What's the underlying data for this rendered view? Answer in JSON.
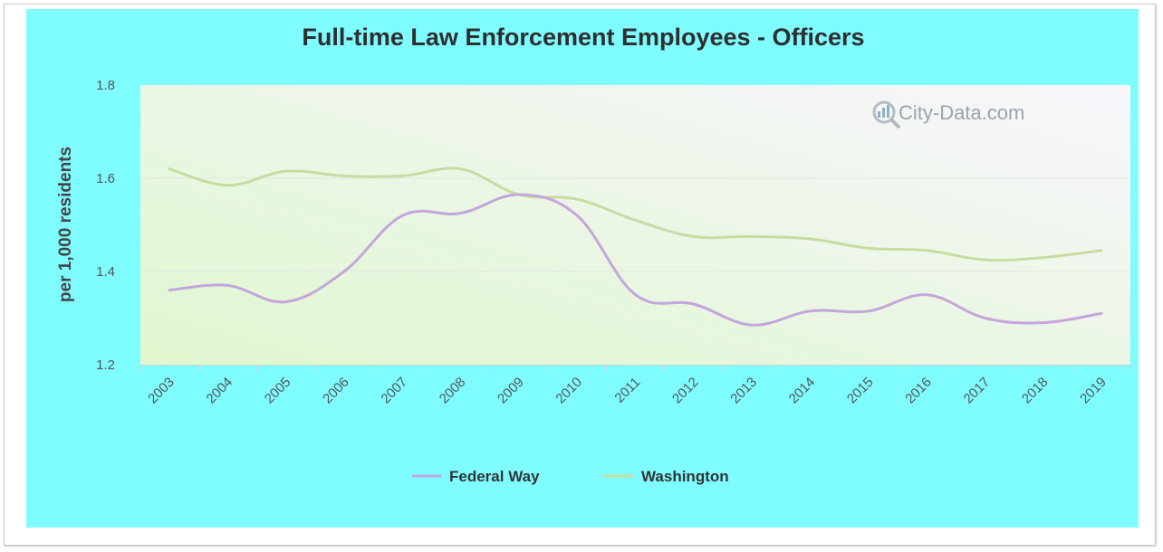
{
  "chart_data": {
    "type": "line",
    "title": "Full-time Law Enforcement Employees - Officers",
    "xlabel": "",
    "ylabel": "per 1,000 residents",
    "categories": [
      "2003",
      "2004",
      "2005",
      "2006",
      "2007",
      "2008",
      "2009",
      "2010",
      "2011",
      "2012",
      "2013",
      "2014",
      "2015",
      "2016",
      "2017",
      "2018",
      "2019"
    ],
    "yticks": [
      "1.2",
      "1.4",
      "1.6",
      "1.8"
    ],
    "ylim": [
      1.2,
      1.8
    ],
    "grid": true,
    "legend_position": "bottom",
    "series": [
      {
        "name": "Federal Way",
        "color": "#c4a6dc",
        "values": [
          1.36,
          1.37,
          1.335,
          1.4,
          1.52,
          1.525,
          1.565,
          1.52,
          1.35,
          1.33,
          1.285,
          1.315,
          1.315,
          1.35,
          1.3,
          1.29,
          1.31
        ]
      },
      {
        "name": "Washington",
        "color": "#c8dca0",
        "values": [
          1.62,
          1.585,
          1.615,
          1.605,
          1.605,
          1.62,
          1.565,
          1.555,
          1.51,
          1.475,
          1.475,
          1.47,
          1.45,
          1.445,
          1.425,
          1.43,
          1.445
        ]
      }
    ]
  },
  "watermark": {
    "text": "City-Data.com",
    "icon": "magnifier-chart-icon"
  }
}
